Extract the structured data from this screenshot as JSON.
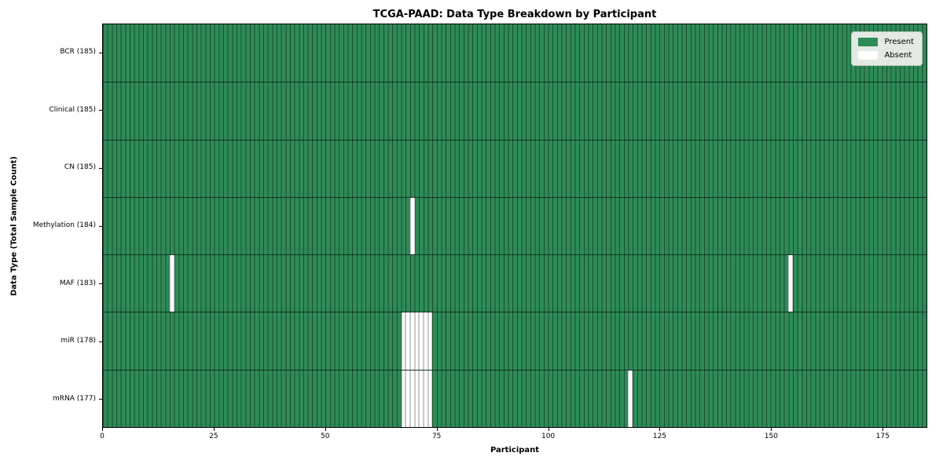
{
  "chart_data": {
    "type": "heatmap",
    "title": "TCGA-PAAD: Data Type Breakdown by Participant",
    "xlabel": "Participant",
    "ylabel": "Data Type (Total Sample Count)",
    "xlim": [
      0,
      185
    ],
    "n_participants": 185,
    "x_ticks": [
      0,
      25,
      50,
      75,
      100,
      125,
      150,
      175
    ],
    "grid": true,
    "legend": {
      "position": "upper-right",
      "present_label": "Present",
      "absent_label": "Absent"
    },
    "colors": {
      "present": "#2e8b57",
      "absent": "#ffffff",
      "grid_line_on_present": "rgba(0,0,0,0.45)",
      "grid_line_on_absent": "#c8c8c8",
      "row_divider": "rgba(0,0,0,0.6)",
      "frame": "#000000",
      "legend_background": "#e3eae4",
      "legend_border": "#bfc6c0"
    },
    "rows": [
      {
        "name": "BCR",
        "count": 185,
        "tick_label": "BCR (185)",
        "absent_participants": []
      },
      {
        "name": "Clinical",
        "count": 185,
        "tick_label": "Clinical (185)",
        "absent_participants": []
      },
      {
        "name": "CN",
        "count": 185,
        "tick_label": "CN (185)",
        "absent_participants": []
      },
      {
        "name": "Methylation",
        "count": 184,
        "tick_label": "Methylation (184)",
        "absent_participants": [
          69
        ]
      },
      {
        "name": "MAF",
        "count": 183,
        "tick_label": "MAF (183)",
        "absent_participants": [
          15,
          154
        ]
      },
      {
        "name": "miR",
        "count": 178,
        "tick_label": "miR (178)",
        "absent_participants": [
          67,
          68,
          69,
          70,
          71,
          72,
          73
        ]
      },
      {
        "name": "mRNA",
        "count": 177,
        "tick_label": "mRNA (177)",
        "absent_participants": [
          67,
          68,
          69,
          70,
          71,
          72,
          73,
          118
        ]
      }
    ]
  }
}
